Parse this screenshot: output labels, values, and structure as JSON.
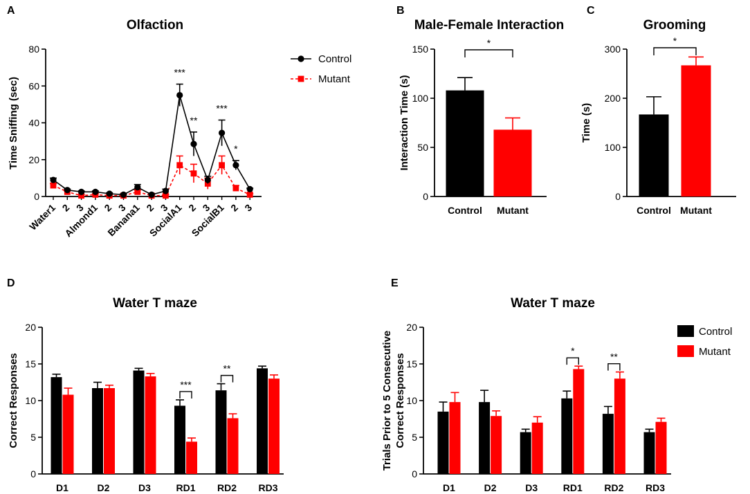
{
  "colors": {
    "control": "#000000",
    "mutant": "#ff0000"
  },
  "chart_data": [
    {
      "panel": "A",
      "type": "line",
      "title": "Olfaction",
      "xlabel": "",
      "ylabel": "Time Sniffing (sec)",
      "ylim": [
        0,
        80
      ],
      "yticks": [
        0,
        20,
        40,
        60,
        80
      ],
      "categories": [
        "Water1",
        "2",
        "3",
        "Almond1",
        "2",
        "3",
        "Banana1",
        "2",
        "3",
        "SocialA1",
        "2",
        "3",
        "SocialB1",
        "2",
        "3"
      ],
      "series": [
        {
          "name": "Control",
          "values": [
            9,
            3.5,
            2.5,
            2.5,
            1.5,
            1,
            5,
            1,
            3,
            55,
            28.5,
            9,
            34.5,
            17,
            4
          ],
          "errors": [
            1,
            0.5,
            0.5,
            0.5,
            0.5,
            0.5,
            1.5,
            0.5,
            1,
            6,
            6.5,
            2,
            7,
            2.5,
            0.5
          ]
        },
        {
          "name": "Mutant",
          "values": [
            6,
            2.5,
            0.5,
            1,
            0.5,
            0.5,
            2.5,
            0.5,
            0.5,
            17,
            12.5,
            7,
            17,
            4.5,
            1
          ],
          "errors": [
            1,
            0.5,
            0.5,
            0.5,
            0.5,
            0.5,
            1,
            0.5,
            0.5,
            5,
            5,
            3,
            5,
            1.5,
            0.5
          ]
        }
      ],
      "annotations": [
        {
          "category_index": 9,
          "text": "***"
        },
        {
          "category_index": 10,
          "text": "**"
        },
        {
          "category_index": 12,
          "text": "***"
        },
        {
          "category_index": 13,
          "text": "*"
        }
      ],
      "legend": {
        "position": "top-right",
        "entries": [
          "Control",
          "Mutant"
        ]
      }
    },
    {
      "panel": "B",
      "type": "bar",
      "title": "Male-Female Interaction",
      "ylabel": "Interaction Time (s)",
      "ylim": [
        0,
        150
      ],
      "yticks": [
        0,
        50,
        100,
        150
      ],
      "categories": [
        "Control",
        "Mutant"
      ],
      "values": [
        108,
        68
      ],
      "errors": [
        13,
        12
      ],
      "significance": [
        {
          "from": 0,
          "to": 1,
          "text": "*"
        }
      ]
    },
    {
      "panel": "C",
      "type": "bar",
      "title": "Grooming",
      "ylabel": "Time (s)",
      "ylim": [
        0,
        300
      ],
      "yticks": [
        0,
        100,
        200,
        300
      ],
      "categories": [
        "Control",
        "Mutant"
      ],
      "values": [
        167,
        267
      ],
      "errors": [
        36,
        17
      ],
      "significance": [
        {
          "from": 0,
          "to": 1,
          "text": "*"
        }
      ]
    },
    {
      "panel": "D",
      "type": "bar",
      "title": "Water T maze",
      "ylabel": "Correct Responses",
      "ylim": [
        0,
        20
      ],
      "yticks": [
        0,
        5,
        10,
        15,
        20
      ],
      "categories": [
        "D1",
        "D2",
        "D3",
        "RD1",
        "RD2",
        "RD3"
      ],
      "series": [
        {
          "name": "Control",
          "values": [
            13.2,
            11.7,
            14.1,
            9.3,
            11.4,
            14.4
          ],
          "errors": [
            0.4,
            0.8,
            0.3,
            0.8,
            0.9,
            0.3
          ]
        },
        {
          "name": "Mutant",
          "values": [
            10.8,
            11.7,
            13.3,
            4.4,
            7.6,
            13.0
          ],
          "errors": [
            0.9,
            0.4,
            0.4,
            0.5,
            0.6,
            0.5
          ]
        }
      ],
      "significance": [
        {
          "category_index": 3,
          "text": "***"
        },
        {
          "category_index": 4,
          "text": "**"
        }
      ]
    },
    {
      "panel": "E",
      "type": "bar",
      "title": "Water T maze",
      "ylabel": "Trials Prior to 5 Consecutive Correct Responses",
      "ylabel_lines": [
        "Trials Prior to 5 Consecutive",
        "Correct Responses"
      ],
      "ylim": [
        0,
        20
      ],
      "yticks": [
        0,
        5,
        10,
        15,
        20
      ],
      "categories": [
        "D1",
        "D2",
        "D3",
        "RD1",
        "RD2",
        "RD3"
      ],
      "series": [
        {
          "name": "Control",
          "values": [
            8.5,
            9.8,
            5.7,
            10.3,
            8.2,
            5.7
          ],
          "errors": [
            1.3,
            1.6,
            0.4,
            1.0,
            1.0,
            0.4
          ]
        },
        {
          "name": "Mutant",
          "values": [
            9.8,
            7.9,
            7.0,
            14.3,
            13.0,
            7.1
          ],
          "errors": [
            1.3,
            0.7,
            0.8,
            0.4,
            0.9,
            0.5
          ]
        }
      ],
      "significance": [
        {
          "category_index": 3,
          "text": "*"
        },
        {
          "category_index": 4,
          "text": "**"
        }
      ],
      "legend": {
        "position": "top-right",
        "entries": [
          "Control",
          "Mutant"
        ]
      }
    }
  ]
}
